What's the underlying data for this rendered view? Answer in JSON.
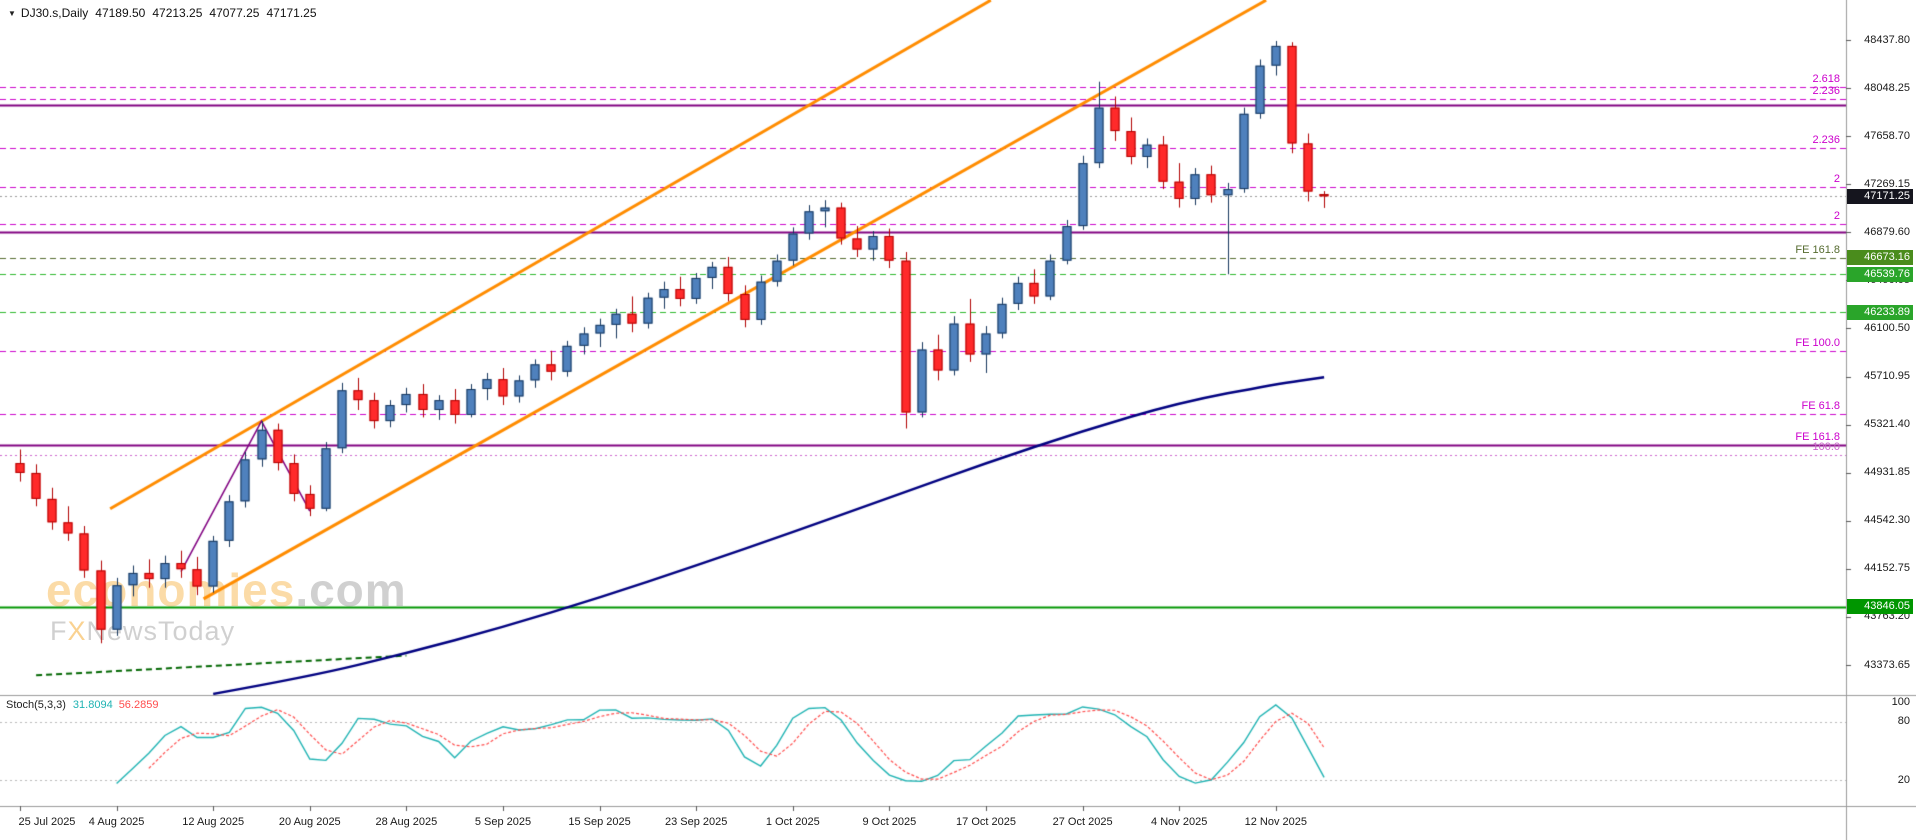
{
  "window": {
    "symbol_label": "DJ30.s,Daily",
    "open": "47189.50",
    "high": "47213.25",
    "low": "47077.25",
    "close": "47171.25"
  },
  "watermark": {
    "brand": "economies",
    "brand_suffix": ".com",
    "tagline_prefix": "F",
    "tagline_x": "X",
    "tagline_rest": "NewsToday"
  },
  "price_axis": {
    "labels": [
      "48437.80",
      "48048.25",
      "47658.70",
      "47269.15",
      "46879.60",
      "46490.05",
      "46100.50",
      "45710.95",
      "45321.40",
      "44931.85",
      "44542.30",
      "44152.75",
      "43763.20",
      "43373.65"
    ],
    "step": 389.55,
    "current_badge": {
      "text": "47171.25",
      "price": 47171.25,
      "bg": "#15151e"
    },
    "level_badges": [
      {
        "text": "46673.16",
        "price": 46673.16,
        "bg": "#4a8c1c"
      },
      {
        "text": "46539.76",
        "price": 46539.76,
        "bg": "#2aa52a"
      },
      {
        "text": "46233.89",
        "price": 46233.89,
        "bg": "#2aa52a"
      },
      {
        "text": "43846.05",
        "price": 43846.05,
        "bg": "#009600"
      }
    ]
  },
  "time_axis": {
    "labels": [
      {
        "text": "25 Jul 2025",
        "index": 0
      },
      {
        "text": "4 Aug 2025",
        "index": 6
      },
      {
        "text": "12 Aug 2025",
        "index": 12
      },
      {
        "text": "20 Aug 2025",
        "index": 18
      },
      {
        "text": "28 Aug 2025",
        "index": 24
      },
      {
        "text": "5 Sep 2025",
        "index": 30
      },
      {
        "text": "15 Sep 2025",
        "index": 36
      },
      {
        "text": "23 Sep 2025",
        "index": 42
      },
      {
        "text": "1 Oct 2025",
        "index": 48
      },
      {
        "text": "9 Oct 2025",
        "index": 54
      },
      {
        "text": "17 Oct 2025",
        "index": 60
      },
      {
        "text": "27 Oct 2025",
        "index": 66
      },
      {
        "text": "4 Nov 2025",
        "index": 72
      },
      {
        "text": "12 Nov 2025",
        "index": 78
      }
    ]
  },
  "stoch_panel": {
    "label": "Stoch(5,3,3)",
    "main_value": "31.8094",
    "signal_value": "56.2859",
    "main_color": "#1fb3b3",
    "signal_color": "#ff4d4d",
    "levels": [
      {
        "text": "100",
        "value": 100,
        "line": false
      },
      {
        "text": "80",
        "value": 80,
        "line": true
      },
      {
        "text": "20",
        "value": 20,
        "line": true
      }
    ]
  },
  "colors": {
    "background": "#ffffff",
    "bull_fill": "#4f81bd",
    "bull_stroke": "#16365c",
    "bear_fill": "#ff2a2a",
    "bear_stroke": "#b00000",
    "channel": "#ff8c00",
    "moving_average": "#000080",
    "borders": "#9a9a9a",
    "fib_magenta": "#cc00cc",
    "purple_line": "#800080",
    "green_solid": "#009600",
    "green_dashed": "#2db82d",
    "olive_dashed": "#556b2f",
    "stoch_main": "#1fb3b3",
    "stoch_signal": "#ff4d4d",
    "current_badge_bg": "#15151e"
  },
  "chart_data": {
    "type": "candlestick",
    "symbol": "DJ30.s",
    "timeframe": "Daily",
    "current_price": 47171.25,
    "candles": [
      [
        "25 Jul",
        45010,
        45120,
        44860,
        44930
      ],
      [
        "28 Jul",
        44930,
        45000,
        44660,
        44720
      ],
      [
        "29 Jul",
        44720,
        44810,
        44470,
        44530
      ],
      [
        "30 Jul",
        44530,
        44660,
        44380,
        44440
      ],
      [
        "31 Jul",
        44440,
        44500,
        44080,
        44140
      ],
      [
        "1 Aug",
        44140,
        44220,
        43550,
        43660
      ],
      [
        "4 Aug",
        43660,
        44080,
        43610,
        44020
      ],
      [
        "5 Aug",
        44020,
        44180,
        43930,
        44120
      ],
      [
        "6 Aug",
        44120,
        44230,
        44000,
        44070
      ],
      [
        "7 Aug",
        44070,
        44260,
        44000,
        44200
      ],
      [
        "8 Aug",
        44200,
        44300,
        44080,
        44150
      ],
      [
        "11 Aug",
        44150,
        44250,
        43940,
        44010
      ],
      [
        "12 Aug",
        44010,
        44420,
        43960,
        44380
      ],
      [
        "13 Aug",
        44380,
        44750,
        44330,
        44700
      ],
      [
        "14 Aug",
        44700,
        45100,
        44650,
        45040
      ],
      [
        "15 Aug",
        45040,
        45350,
        44980,
        45280
      ],
      [
        "18 Aug",
        45280,
        45330,
        44950,
        45010
      ],
      [
        "19 Aug",
        45010,
        45080,
        44700,
        44760
      ],
      [
        "20 Aug",
        44760,
        44830,
        44580,
        44640
      ],
      [
        "21 Aug",
        44640,
        45180,
        44620,
        45130
      ],
      [
        "22 Aug",
        45130,
        45660,
        45090,
        45600
      ],
      [
        "25 Aug",
        45600,
        45700,
        45440,
        45520
      ],
      [
        "26 Aug",
        45520,
        45580,
        45290,
        45350
      ],
      [
        "27 Aug",
        45350,
        45520,
        45300,
        45480
      ],
      [
        "28 Aug",
        45480,
        45620,
        45420,
        45570
      ],
      [
        "29 Aug",
        45570,
        45650,
        45380,
        45440
      ],
      [
        "1 Sep",
        45440,
        45560,
        45360,
        45520
      ],
      [
        "2 Sep",
        45520,
        45610,
        45330,
        45400
      ],
      [
        "3 Sep",
        45400,
        45650,
        45380,
        45610
      ],
      [
        "4 Sep",
        45610,
        45740,
        45520,
        45690
      ],
      [
        "5 Sep",
        45690,
        45780,
        45480,
        45550
      ],
      [
        "8 Sep",
        45550,
        45720,
        45500,
        45680
      ],
      [
        "9 Sep",
        45680,
        45850,
        45620,
        45810
      ],
      [
        "10 Sep",
        45810,
        45920,
        45680,
        45750
      ],
      [
        "11 Sep",
        45750,
        46000,
        45710,
        45960
      ],
      [
        "12 Sep",
        45960,
        46110,
        45890,
        46060
      ],
      [
        "15 Sep",
        46060,
        46180,
        45950,
        46130
      ],
      [
        "16 Sep",
        46130,
        46260,
        46020,
        46220
      ],
      [
        "17 Sep",
        46220,
        46360,
        46070,
        46140
      ],
      [
        "18 Sep",
        46140,
        46390,
        46100,
        46350
      ],
      [
        "19 Sep",
        46350,
        46480,
        46260,
        46420
      ],
      [
        "22 Sep",
        46420,
        46520,
        46280,
        46340
      ],
      [
        "23 Sep",
        46340,
        46550,
        46300,
        46510
      ],
      [
        "24 Sep",
        46510,
        46640,
        46420,
        46600
      ],
      [
        "25 Sep",
        46600,
        46680,
        46320,
        46380
      ],
      [
        "26 Sep",
        46380,
        46450,
        46110,
        46170
      ],
      [
        "29 Sep",
        46170,
        46530,
        46130,
        46480
      ],
      [
        "30 Sep",
        46480,
        46700,
        46440,
        46650
      ],
      [
        "1 Oct",
        46650,
        46920,
        46610,
        46870
      ],
      [
        "2 Oct",
        46870,
        47100,
        46820,
        47050
      ],
      [
        "3 Oct",
        47050,
        47140,
        46920,
        47080
      ],
      [
        "6 Oct",
        47080,
        47120,
        46780,
        46830
      ],
      [
        "7 Oct",
        46830,
        46930,
        46680,
        46740
      ],
      [
        "8 Oct",
        46740,
        46890,
        46650,
        46850
      ],
      [
        "9 Oct",
        46850,
        46910,
        46590,
        46650
      ],
      [
        "10 Oct",
        46650,
        46720,
        45290,
        45420
      ],
      [
        "13 Oct",
        45420,
        45990,
        45380,
        45930
      ],
      [
        "14 Oct",
        45930,
        46050,
        45680,
        45760
      ],
      [
        "15 Oct",
        45760,
        46200,
        45720,
        46140
      ],
      [
        "16 Oct",
        46140,
        46340,
        45830,
        45890
      ],
      [
        "17 Oct",
        45890,
        46120,
        45740,
        46060
      ],
      [
        "20 Oct",
        46060,
        46350,
        46020,
        46300
      ],
      [
        "21 Oct",
        46300,
        46520,
        46250,
        46470
      ],
      [
        "22 Oct",
        46470,
        46580,
        46300,
        46360
      ],
      [
        "23 Oct",
        46360,
        46700,
        46330,
        46650
      ],
      [
        "24 Oct",
        46650,
        46980,
        46620,
        46930
      ],
      [
        "27 Oct",
        46930,
        47500,
        46900,
        47440
      ],
      [
        "28 Oct",
        47440,
        48100,
        47400,
        47890
      ],
      [
        "29 Oct",
        47890,
        47980,
        47620,
        47700
      ],
      [
        "30 Oct",
        47700,
        47810,
        47430,
        47490
      ],
      [
        "31 Oct",
        47490,
        47640,
        47400,
        47590
      ],
      [
        "3 Nov",
        47590,
        47660,
        47230,
        47290
      ],
      [
        "4 Nov",
        47290,
        47440,
        47080,
        47150
      ],
      [
        "5 Nov",
        47150,
        47400,
        47100,
        47350
      ],
      [
        "6 Nov",
        47350,
        47420,
        47120,
        47180
      ],
      [
        "7 Nov",
        47180,
        47280,
        46540,
        47230
      ],
      [
        "10 Nov",
        47230,
        47890,
        47200,
        47840
      ],
      [
        "11 Nov",
        47840,
        48280,
        47800,
        48230
      ],
      [
        "12 Nov",
        48230,
        48430,
        48150,
        48390
      ],
      [
        "13 Nov",
        48390,
        48420,
        47520,
        47600
      ],
      [
        "14 Nov",
        47600,
        47680,
        47130,
        47210
      ],
      [
        "17 Nov",
        47189.5,
        47213.25,
        47077.25,
        47171.25
      ]
    ],
    "horizontal_lines": [
      {
        "price": 48060,
        "label": "2.618",
        "color": "#cc00cc",
        "style": "dashed",
        "width": 1
      },
      {
        "price": 47960,
        "label": "2.236",
        "color": "#cc00cc",
        "style": "dashed",
        "width": 1
      },
      {
        "price": 47910,
        "label": "",
        "color": "#800080",
        "style": "solid",
        "width": 2
      },
      {
        "price": 47560,
        "label": "2.236",
        "color": "#cc00cc",
        "style": "dashed",
        "width": 1
      },
      {
        "price": 47245,
        "label": "2",
        "color": "#cc00cc",
        "style": "dashed",
        "width": 1
      },
      {
        "price": 46950,
        "label": "2",
        "color": "#cc00cc",
        "style": "dashed",
        "width": 1
      },
      {
        "price": 46880,
        "label": "",
        "color": "#800080",
        "style": "solid",
        "width": 2
      },
      {
        "price": 46673.16,
        "label": "FE 161.8",
        "color": "#556b2f",
        "style": "dashed",
        "width": 1
      },
      {
        "price": 46539.76,
        "label": "",
        "color": "#2db82d",
        "style": "dashed",
        "width": 1
      },
      {
        "price": 46233.89,
        "label": "",
        "color": "#2db82d",
        "style": "dashed",
        "width": 1
      },
      {
        "price": 45920,
        "label": "FE 100.0",
        "color": "#cc00cc",
        "style": "dashed",
        "width": 1
      },
      {
        "price": 45410,
        "label": "FE 61.8",
        "color": "#cc00cc",
        "style": "dashed",
        "width": 1
      },
      {
        "price": 45155,
        "label": "FE 161.8",
        "label_color": "#cc00cc",
        "color": "#800080",
        "style": "solid",
        "width": 2
      },
      {
        "price": 45075,
        "label": "100.0",
        "color": "#cc66cc",
        "style": "dotted",
        "width": 1
      },
      {
        "price": 43846.05,
        "label": "",
        "color": "#009600",
        "style": "solid",
        "width": 2
      }
    ],
    "channel_lines": [
      {
        "from": {
          "index": 5.6,
          "price": 44640
        },
        "to": {
          "index": 60.3,
          "price": 48760
        },
        "color": "#ff8c00",
        "width": 3
      },
      {
        "from": {
          "index": 11.4,
          "price": 43910
        },
        "to": {
          "index": 77.4,
          "price": 48760
        },
        "color": "#ff8c00",
        "width": 3
      }
    ],
    "moving_average": {
      "color": "#000080",
      "width": 2.5,
      "points": [
        [
          12,
          43140
        ],
        [
          18,
          43280
        ],
        [
          24,
          43470
        ],
        [
          30,
          43680
        ],
        [
          36,
          43920
        ],
        [
          42,
          44180
        ],
        [
          48,
          44450
        ],
        [
          54,
          44730
        ],
        [
          60,
          45010
        ],
        [
          66,
          45270
        ],
        [
          72,
          45500
        ],
        [
          78,
          45650
        ],
        [
          81,
          45705
        ]
      ]
    },
    "zigzag": {
      "color": "#800080",
      "width": 1.5,
      "points": [
        [
          10,
          44130
        ],
        [
          15,
          45350
        ],
        [
          18,
          44620
        ]
      ]
    },
    "trendline": {
      "color": "#006600",
      "width": 2,
      "style": "dashed",
      "points": [
        [
          1,
          43290
        ],
        [
          24,
          43450
        ]
      ]
    }
  }
}
